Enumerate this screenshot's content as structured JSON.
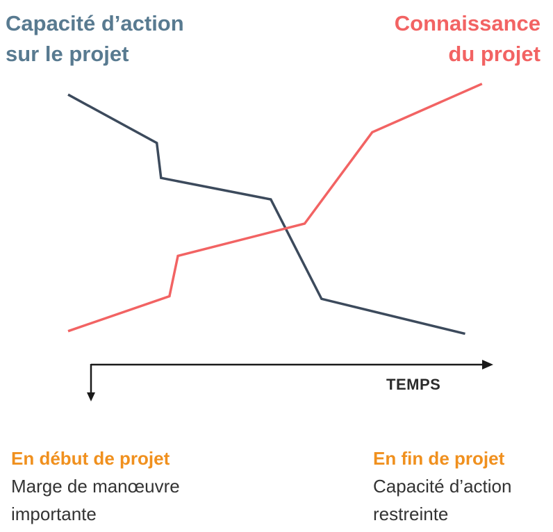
{
  "titles": {
    "left": {
      "line1": "Capacité d’action",
      "line2": "sur le projet",
      "color": "#587a90"
    },
    "right": {
      "line1": "Connaissance",
      "line2": "du projet",
      "color": "#f26363"
    }
  },
  "axis": {
    "x_label": "TEMPS",
    "color": "#1a1a1a"
  },
  "notes": {
    "start": {
      "heading": "En début de projet",
      "line1": "Marge de manœuvre",
      "line2": "importante"
    },
    "end": {
      "heading": "En fin de projet",
      "line1": "Capacité d’action",
      "line2": "restreinte"
    },
    "heading_color": "#f0901e"
  },
  "chart_data": {
    "type": "line",
    "grid": false,
    "legend": "none",
    "series": [
      {
        "name": "Capacité d’action sur le projet",
        "color": "#3c4a5c",
        "points": [
          [
            0,
            94
          ],
          [
            21,
            76
          ],
          [
            22,
            63
          ],
          [
            48,
            55
          ],
          [
            60,
            18
          ],
          [
            94,
            5
          ]
        ]
      },
      {
        "name": "Connaissance du projet",
        "color": "#f26363",
        "points": [
          [
            0,
            6
          ],
          [
            24,
            19
          ],
          [
            26,
            34
          ],
          [
            56,
            46
          ],
          [
            72,
            80
          ],
          [
            98,
            98
          ]
        ]
      }
    ]
  }
}
